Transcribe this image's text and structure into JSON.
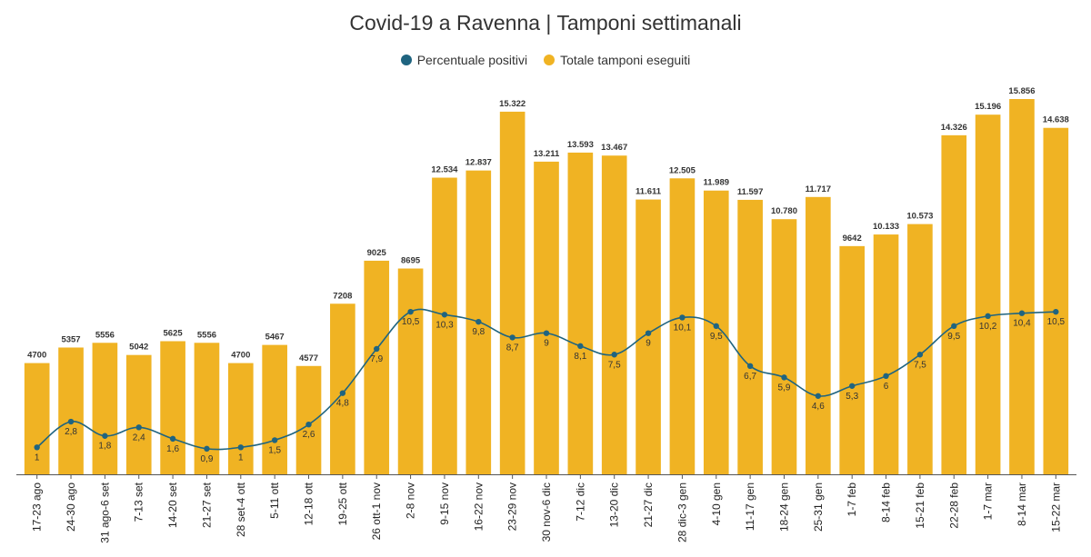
{
  "title": "Covid-19 a Ravenna | Tamponi settimanali",
  "legend": [
    {
      "label": "Percentuale positivi",
      "color": "#1f6480"
    },
    {
      "label": "Totale tamponi eseguiti",
      "color": "#f0b323"
    }
  ],
  "chart_data": {
    "type": "bar",
    "title": "Covid-19 a Ravenna | Tamponi settimanali",
    "xlabel": "",
    "ylabel": "",
    "grid": false,
    "legend_position": "top-center",
    "categories": [
      "17-23 ago",
      "24-30 ago",
      "31 ago-6 set",
      "7-13 set",
      "14-20 set",
      "21-27 set",
      "28 set-4 ott",
      "5-11 ott",
      "12-18 ott",
      "19-25 ott",
      "26 ott-1 nov",
      "2-8 nov",
      "9-15 nov",
      "16-22 nov",
      "23-29 nov",
      "30 nov-6 dic",
      "7-12 dic",
      "13-20 dic",
      "21-27 dic",
      "28 dic-3 gen",
      "4-10 gen",
      "11-17 gen",
      "18-24 gen",
      "25-31 gen",
      "1-7 feb",
      "8-14 feb",
      "15-21 feb",
      "22-28 feb",
      "1-7 mar",
      "8-14 mar",
      "15-22 mar"
    ],
    "series": [
      {
        "name": "Totale tamponi eseguiti",
        "type": "bar",
        "color": "#f0b323",
        "values": [
          4700,
          5357,
          5556,
          5042,
          5625,
          5556,
          4700,
          5467,
          4577,
          7208,
          9025,
          8695,
          12534,
          12837,
          15322,
          13211,
          13593,
          13467,
          11611,
          12505,
          11989,
          11597,
          10780,
          11717,
          9642,
          10133,
          10573,
          14326,
          15196,
          15856,
          14638
        ],
        "labels": [
          "4700",
          "5357",
          "5556",
          "5042",
          "5625",
          "5556",
          "4700",
          "5467",
          "4577",
          "7208",
          "9025",
          "8695",
          "12.534",
          "12.837",
          "15.322",
          "13.211",
          "13.593",
          "13.467",
          "11.611",
          "12.505",
          "11.989",
          "11.597",
          "10.780",
          "11.717",
          "9642",
          "10.133",
          "10.573",
          "14.326",
          "15.196",
          "15.856",
          "14.638"
        ]
      },
      {
        "name": "Percentuale positivi",
        "type": "line",
        "color": "#1f6480",
        "values": [
          1,
          2.8,
          1.8,
          2.4,
          1.6,
          0.9,
          1,
          1.5,
          2.6,
          4.8,
          7.9,
          10.5,
          10.3,
          9.8,
          8.7,
          9,
          8.1,
          7.5,
          9,
          10.1,
          9.5,
          6.7,
          5.9,
          4.6,
          5.3,
          6,
          7.5,
          9.5,
          10.2,
          10.4,
          10.5
        ],
        "labels": [
          "1",
          "2,8",
          "1,8",
          "2,4",
          "1,6",
          "0,9",
          "1",
          "1,5",
          "2,6",
          "4,8",
          "7,9",
          "10,5",
          "10,3",
          "9,8",
          "8,7",
          "9",
          "8,1",
          "7,5",
          "9",
          "10,1",
          "9,5",
          "6,7",
          "5,9",
          "4,6",
          "5,3",
          "6",
          "7,5",
          "9,5",
          "10,2",
          "10,4",
          "10,5"
        ]
      }
    ]
  }
}
